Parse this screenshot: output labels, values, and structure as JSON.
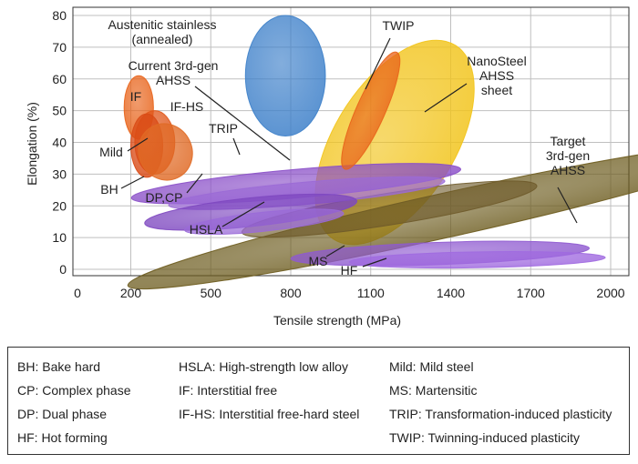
{
  "chart_data": {
    "type": "scatter",
    "subtype": "property-region-bubbles",
    "xlabel": "Tensile strength (MPa)",
    "ylabel": "Elongation (%)",
    "xlim": [
      0,
      2100
    ],
    "ylim": [
      -2,
      80
    ],
    "x_ticks": [
      0,
      200,
      500,
      800,
      1100,
      1400,
      1700,
      2000
    ],
    "y_ticks": [
      0,
      10,
      20,
      30,
      40,
      50,
      60,
      70,
      80
    ],
    "grid": true,
    "regions": [
      {
        "id": "nanosteel",
        "cx": 1190,
        "cy": 40,
        "rx": 430,
        "ry": 19,
        "angle": 58,
        "color": "#f2c41a",
        "opacity": 0.85
      },
      {
        "id": "target-3rd-gen",
        "cx": 1380,
        "cy": 17,
        "rx": 1220,
        "ry": 7,
        "angle": 12.5,
        "color": "#6b5a1c",
        "opacity": 0.8
      },
      {
        "id": "current-3rd-gen",
        "cx": 1170,
        "cy": 19,
        "rx": 560,
        "ry": 5,
        "angle": 9,
        "color": "#6e5a2a",
        "opacity": 0.7
      },
      {
        "id": "trip",
        "cx": 820,
        "cy": 27,
        "rx": 620,
        "ry": 4.5,
        "angle": 5,
        "color": "#8a4fc8",
        "opacity": 0.85
      },
      {
        "id": "trip-inner",
        "cx": 860,
        "cy": 24,
        "rx": 520,
        "ry": 3.5,
        "angle": 5,
        "color": "#9b6ad6",
        "opacity": 0.8
      },
      {
        "id": "hsla",
        "cx": 650,
        "cy": 18,
        "rx": 400,
        "ry": 4.5,
        "angle": 6,
        "color": "#7e48c0",
        "opacity": 0.85
      },
      {
        "id": "hsla-inner",
        "cx": 700,
        "cy": 15,
        "rx": 300,
        "ry": 3,
        "angle": 6,
        "color": "#9a6ad8",
        "opacity": 0.8
      },
      {
        "id": "ms",
        "cx": 1360,
        "cy": 5,
        "rx": 560,
        "ry": 3.5,
        "angle": 2,
        "color": "#8f5ad0",
        "opacity": 0.85
      },
      {
        "id": "hf",
        "cx": 1500,
        "cy": 3,
        "rx": 480,
        "ry": 2.5,
        "angle": 1,
        "color": "#a06ae0",
        "opacity": 0.85
      },
      {
        "id": "twip",
        "cx": 1100,
        "cy": 50,
        "rx": 240,
        "ry": 4.5,
        "angle": 66,
        "color": "#e8631a",
        "opacity": 0.8
      },
      {
        "id": "austenitic",
        "cx": 780,
        "cy": 61,
        "rx": 150,
        "ry": 19,
        "angle": 0,
        "color": "#3c7fc9",
        "opacity": 0.85
      },
      {
        "id": "if",
        "cx": 230,
        "cy": 51,
        "rx": 55,
        "ry": 10,
        "angle": 0,
        "color": "#e8631a",
        "opacity": 0.85
      },
      {
        "id": "if-hs",
        "cx": 290,
        "cy": 40,
        "rx": 75,
        "ry": 10,
        "angle": 0,
        "color": "#e0561a",
        "opacity": 0.85
      },
      {
        "id": "mild",
        "cx": 260,
        "cy": 39,
        "rx": 60,
        "ry": 10,
        "angle": 0,
        "color": "#d94a15",
        "opacity": 0.85
      },
      {
        "id": "dp-cp",
        "cx": 330,
        "cy": 37,
        "rx": 100,
        "ry": 9,
        "angle": 25,
        "color": "#e06a25",
        "opacity": 0.85
      }
    ],
    "annotations": [
      {
        "id": "austenitic",
        "lines": [
          "Austenitic stainless",
          "(annealed)"
        ]
      },
      {
        "id": "twip",
        "lines": [
          "TWIP"
        ]
      },
      {
        "id": "current-3rd-gen",
        "lines": [
          "Current 3rd-gen",
          "AHSS"
        ]
      },
      {
        "id": "nanosteel",
        "lines": [
          "NanoSteel",
          "AHSS",
          "sheet"
        ]
      },
      {
        "id": "if",
        "lines": [
          "IF"
        ]
      },
      {
        "id": "if-hs",
        "lines": [
          "IF-HS"
        ]
      },
      {
        "id": "mild",
        "lines": [
          "Mild"
        ]
      },
      {
        "id": "trip",
        "lines": [
          "TRIP"
        ]
      },
      {
        "id": "bh",
        "lines": [
          "BH"
        ]
      },
      {
        "id": "dp-cp",
        "lines": [
          "DP,CP"
        ]
      },
      {
        "id": "target-3rd-gen",
        "lines": [
          "Target",
          "3rd-gen",
          "AHSS"
        ]
      },
      {
        "id": "hsla",
        "lines": [
          "HSLA"
        ]
      },
      {
        "id": "ms",
        "lines": [
          "MS"
        ]
      },
      {
        "id": "hf",
        "lines": [
          "HF"
        ]
      }
    ]
  },
  "legend": {
    "col1": [
      "BH: Bake hard",
      "CP: Complex phase",
      "DP: Dual phase",
      "HF: Hot forming"
    ],
    "col2": [
      "HSLA: High-strength low alloy",
      "IF: Interstitial free",
      "IF-HS: Interstitial free-hard steel"
    ],
    "col3": [
      "Mild: Mild steel",
      "MS: Martensitic",
      "TRIP: Transformation-induced plasticity",
      "TWIP: Twinning-induced plasticity"
    ]
  }
}
